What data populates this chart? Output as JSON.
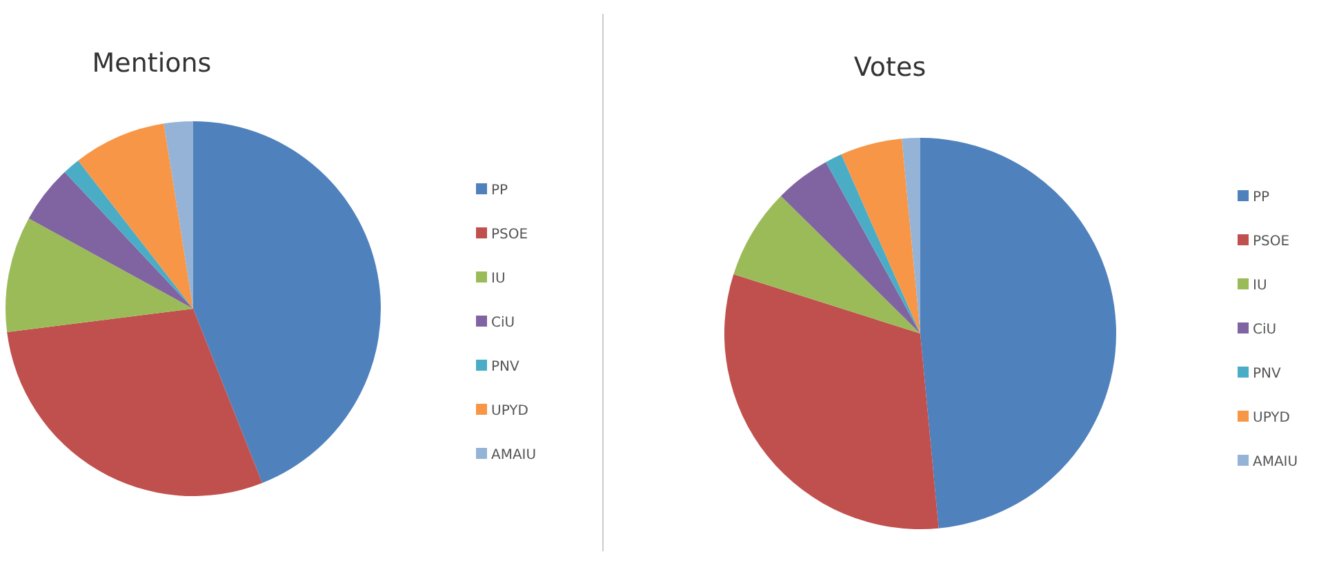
{
  "chart_data": [
    {
      "type": "pie",
      "title": "Mentions",
      "categories": [
        "PP",
        "PSOE",
        "IU",
        "CiU",
        "PNV",
        "UPYD",
        "AMAIU"
      ],
      "values": [
        44,
        29,
        10,
        5,
        1.5,
        8,
        2.5
      ],
      "colors": [
        "#4f81bd",
        "#c0504d",
        "#9bbb59",
        "#8064a2",
        "#4bacc6",
        "#f79646",
        "#95b3d7"
      ],
      "legend": "right"
    },
    {
      "type": "pie",
      "title": "Votes",
      "categories": [
        "PP",
        "PSOE",
        "IU",
        "CiU",
        "PNV",
        "UPYD",
        "AMAIU"
      ],
      "values": [
        48.5,
        31.4,
        7.5,
        4.6,
        1.4,
        5.1,
        1.5
      ],
      "colors": [
        "#4f81bd",
        "#c0504d",
        "#9bbb59",
        "#8064a2",
        "#4bacc6",
        "#f79646",
        "#95b3d7"
      ],
      "legend": "right"
    }
  ]
}
